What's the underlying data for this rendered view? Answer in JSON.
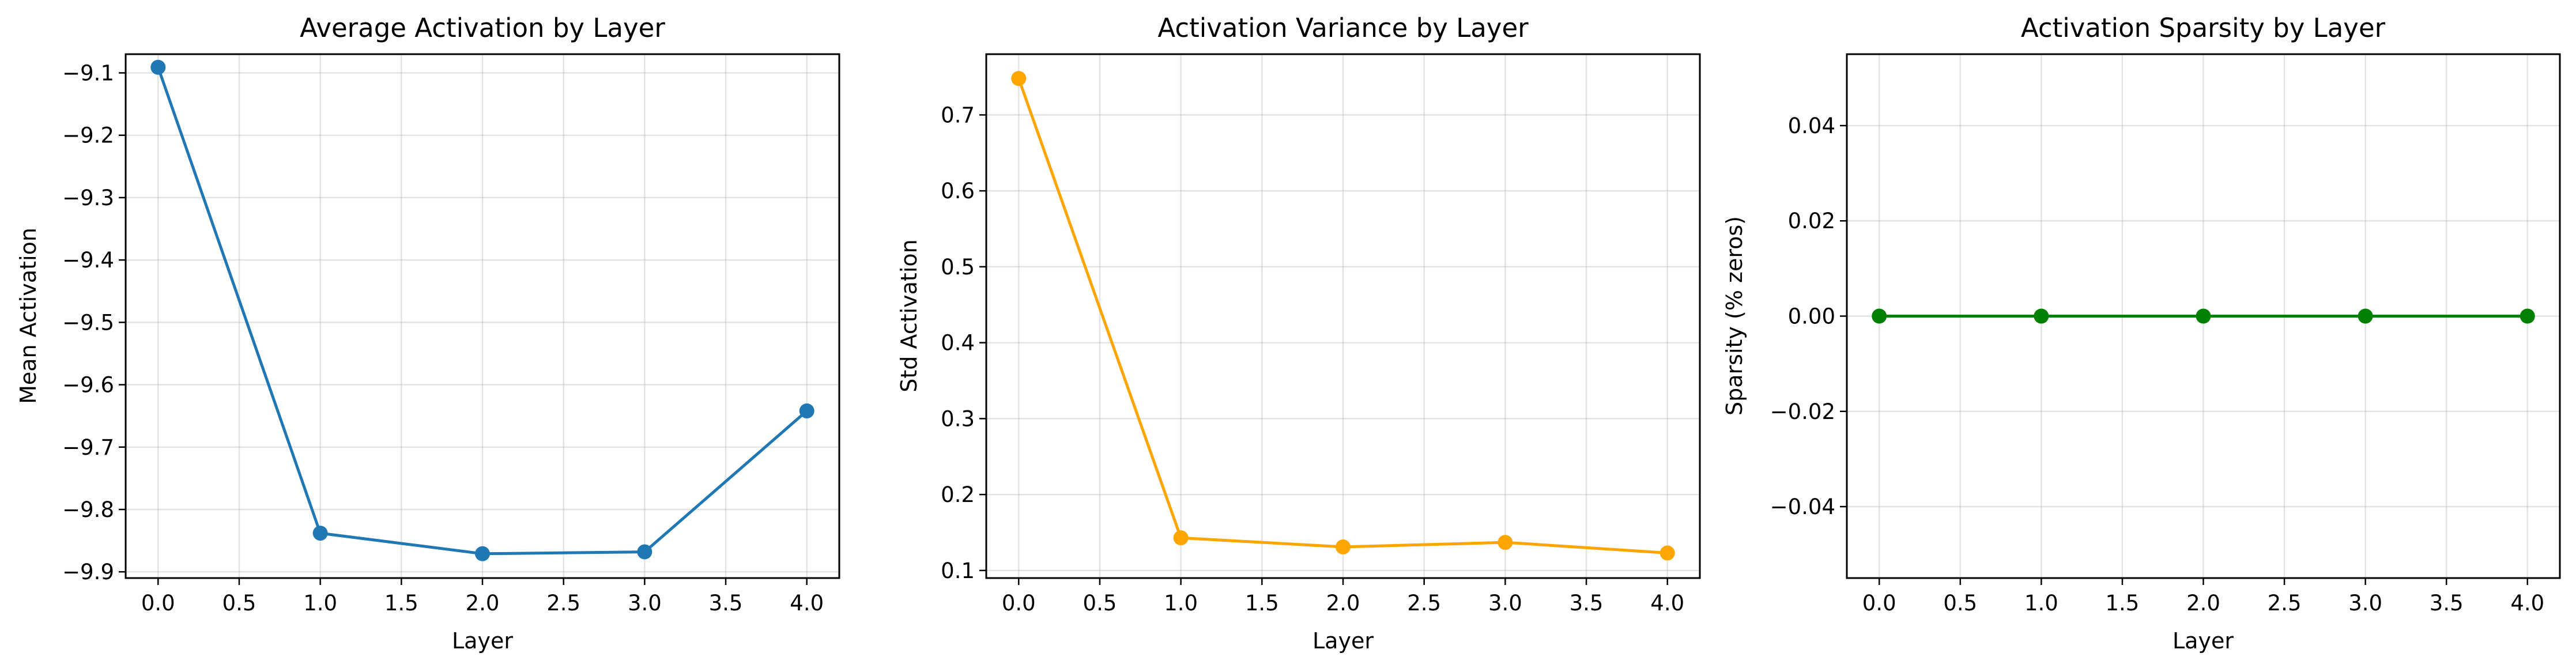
{
  "chart_data": [
    {
      "type": "line",
      "title": "Average Activation by Layer",
      "xlabel": "Layer",
      "ylabel": "Mean Activation",
      "xlim": [
        -0.2,
        4.2
      ],
      "ylim": [
        -9.91,
        -9.07
      ],
      "xticks": [
        0.0,
        0.5,
        1.0,
        1.5,
        2.0,
        2.5,
        3.0,
        3.5,
        4.0
      ],
      "xtick_labels": [
        "0.0",
        "0.5",
        "1.0",
        "1.5",
        "2.0",
        "2.5",
        "3.0",
        "3.5",
        "4.0"
      ],
      "yticks": [
        -9.1,
        -9.2,
        -9.3,
        -9.4,
        -9.5,
        -9.6,
        -9.7,
        -9.8,
        -9.9
      ],
      "ytick_labels": [
        "−9.1",
        "−9.2",
        "−9.3",
        "−9.4",
        "−9.5",
        "−9.6",
        "−9.7",
        "−9.8",
        "−9.9"
      ],
      "grid": true,
      "color": "#1f77b4",
      "x": [
        0,
        1,
        2,
        3,
        4
      ],
      "y": [
        -9.091,
        -9.838,
        -9.871,
        -9.868,
        -9.642
      ]
    },
    {
      "type": "line",
      "title": "Activation Variance by Layer",
      "xlabel": "Layer",
      "ylabel": "Std Activation",
      "xlim": [
        -0.2,
        4.2
      ],
      "ylim": [
        0.09,
        0.78
      ],
      "xticks": [
        0.0,
        0.5,
        1.0,
        1.5,
        2.0,
        2.5,
        3.0,
        3.5,
        4.0
      ],
      "xtick_labels": [
        "0.0",
        "0.5",
        "1.0",
        "1.5",
        "2.0",
        "2.5",
        "3.0",
        "3.5",
        "4.0"
      ],
      "yticks": [
        0.1,
        0.2,
        0.3,
        0.4,
        0.5,
        0.6,
        0.7
      ],
      "ytick_labels": [
        "0.1",
        "0.2",
        "0.3",
        "0.4",
        "0.5",
        "0.6",
        "0.7"
      ],
      "grid": true,
      "color": "#ffa500",
      "x": [
        0,
        1,
        2,
        3,
        4
      ],
      "y": [
        0.748,
        0.143,
        0.131,
        0.137,
        0.123
      ]
    },
    {
      "type": "line",
      "title": "Activation Sparsity by Layer",
      "xlabel": "Layer",
      "ylabel": "Sparsity (% zeros)",
      "xlim": [
        -0.2,
        4.2
      ],
      "ylim": [
        -0.055,
        0.055
      ],
      "xticks": [
        0.0,
        0.5,
        1.0,
        1.5,
        2.0,
        2.5,
        3.0,
        3.5,
        4.0
      ],
      "xtick_labels": [
        "0.0",
        "0.5",
        "1.0",
        "1.5",
        "2.0",
        "2.5",
        "3.0",
        "3.5",
        "4.0"
      ],
      "yticks": [
        0.04,
        0.02,
        0.0,
        -0.02,
        -0.04
      ],
      "ytick_labels": [
        "0.04",
        "0.02",
        "0.00",
        "−0.02",
        "−0.04"
      ],
      "grid": true,
      "color": "#008000",
      "x": [
        0,
        1,
        2,
        3,
        4
      ],
      "y": [
        0.0,
        0.0,
        0.0,
        0.0,
        0.0
      ]
    }
  ]
}
